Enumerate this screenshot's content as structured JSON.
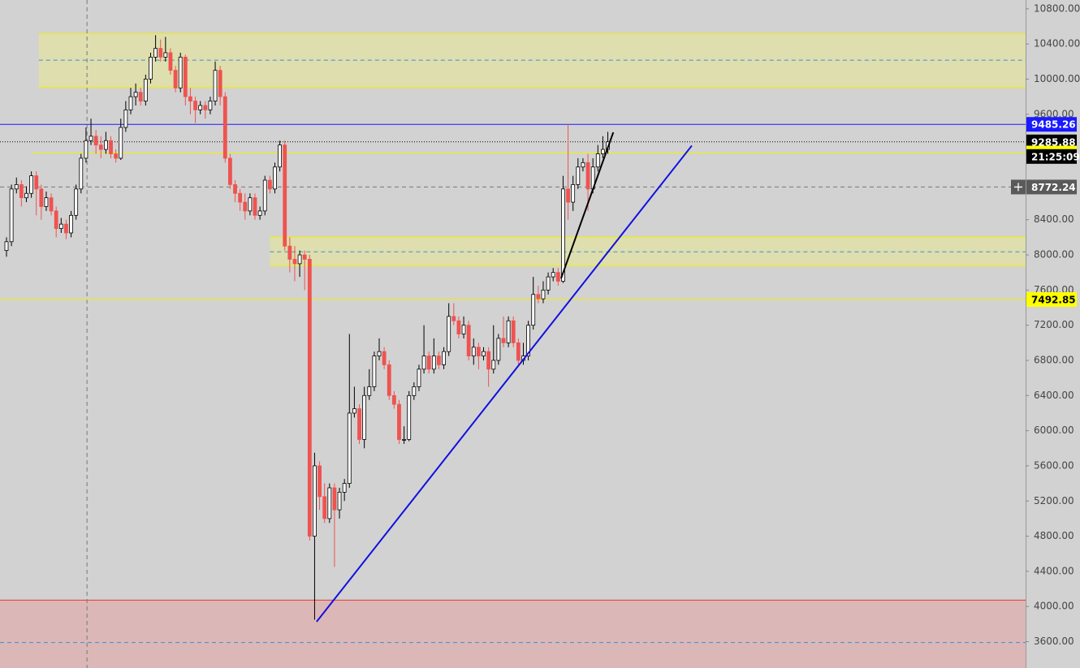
{
  "chart_data": {
    "type": "candlestick",
    "ylim": [
      3300,
      10900
    ],
    "yticks": [
      {
        "value": 10800,
        "label": "10800.00"
      },
      {
        "value": 10400,
        "label": "10400.00"
      },
      {
        "value": 10000,
        "label": "10000.00"
      },
      {
        "value": 9600,
        "label": "9600.00"
      },
      {
        "value": 8400,
        "label": "8400.00"
      },
      {
        "value": 8000,
        "label": "8000.00"
      },
      {
        "value": 7600,
        "label": "7600.00"
      },
      {
        "value": 7200,
        "label": "7200.00"
      },
      {
        "value": 6800,
        "label": "6800.00"
      },
      {
        "value": 6400,
        "label": "6400.00"
      },
      {
        "value": 6000,
        "label": "6000.00"
      },
      {
        "value": 5600,
        "label": "5600.00"
      },
      {
        "value": 5200,
        "label": "5200.00"
      },
      {
        "value": 4800,
        "label": "4800.00"
      },
      {
        "value": 4400,
        "label": "4400.00"
      },
      {
        "value": 4000,
        "label": "4000.00"
      },
      {
        "value": 3600,
        "label": "3600.00"
      }
    ],
    "up_color": "#ffffff",
    "down_color": "#ef5350",
    "ohlc": [
      [
        8050,
        8200,
        7980,
        8150
      ],
      [
        8150,
        8800,
        8100,
        8750
      ],
      [
        8750,
        8880,
        8700,
        8800
      ],
      [
        8800,
        8850,
        8550,
        8650
      ],
      [
        8650,
        8780,
        8600,
        8700
      ],
      [
        8700,
        8950,
        8650,
        8900
      ],
      [
        8900,
        8950,
        8450,
        8750
      ],
      [
        8750,
        8800,
        8400,
        8550
      ],
      [
        8550,
        8720,
        8500,
        8650
      ],
      [
        8650,
        8700,
        8450,
        8500
      ],
      [
        8500,
        8550,
        8200,
        8300
      ],
      [
        8300,
        8420,
        8250,
        8350
      ],
      [
        8350,
        8400,
        8180,
        8250
      ],
      [
        8250,
        8500,
        8200,
        8450
      ],
      [
        8450,
        8800,
        8400,
        8750
      ],
      [
        8750,
        9150,
        8700,
        9100
      ],
      [
        9100,
        9450,
        9050,
        9300
      ],
      [
        9300,
        9550,
        9250,
        9350
      ],
      [
        9350,
        9420,
        9150,
        9250
      ],
      [
        9250,
        9350,
        9100,
        9200
      ],
      [
        9200,
        9400,
        9150,
        9300
      ],
      [
        9300,
        9350,
        9100,
        9150
      ],
      [
        9150,
        9200,
        9050,
        9100
      ],
      [
        9100,
        9550,
        9080,
        9450
      ],
      [
        9450,
        9750,
        9400,
        9650
      ],
      [
        9650,
        9900,
        9600,
        9800
      ],
      [
        9800,
        9950,
        9700,
        9850
      ],
      [
        9850,
        9900,
        9700,
        9750
      ],
      [
        9750,
        10050,
        9700,
        10000
      ],
      [
        10000,
        10300,
        9950,
        10250
      ],
      [
        10250,
        10500,
        10200,
        10350
      ],
      [
        10350,
        10450,
        10200,
        10250
      ],
      [
        10250,
        10480,
        10200,
        10300
      ],
      [
        10300,
        10350,
        10050,
        10100
      ],
      [
        10100,
        10150,
        9850,
        9900
      ],
      [
        9900,
        10300,
        9850,
        10250
      ],
      [
        10250,
        10280,
        9700,
        9800
      ],
      [
        9800,
        9900,
        9600,
        9750
      ],
      [
        9750,
        9800,
        9500,
        9650
      ],
      [
        9650,
        9750,
        9600,
        9700
      ],
      [
        9700,
        9750,
        9550,
        9650
      ],
      [
        9650,
        9800,
        9600,
        9750
      ],
      [
        9750,
        10200,
        9700,
        10100
      ],
      [
        10100,
        10150,
        9700,
        9800
      ],
      [
        9800,
        9850,
        9050,
        9100
      ],
      [
        9100,
        9150,
        8750,
        8800
      ],
      [
        8800,
        8850,
        8600,
        8700
      ],
      [
        8700,
        8750,
        8500,
        8600
      ],
      [
        8600,
        8700,
        8400,
        8500
      ],
      [
        8500,
        8700,
        8450,
        8650
      ],
      [
        8650,
        8700,
        8400,
        8450
      ],
      [
        8450,
        8550,
        8400,
        8500
      ],
      [
        8500,
        8900,
        8450,
        8850
      ],
      [
        8850,
        8900,
        8700,
        8750
      ],
      [
        8750,
        9050,
        8700,
        9000
      ],
      [
        9000,
        9300,
        8950,
        9250
      ],
      [
        9250,
        9300,
        8050,
        8100
      ],
      [
        8100,
        8200,
        7800,
        7950
      ],
      [
        7950,
        8100,
        7700,
        7900
      ],
      [
        7900,
        8050,
        7750,
        8000
      ],
      [
        8000,
        8050,
        7600,
        7950
      ],
      [
        7950,
        8000,
        4750,
        4800
      ],
      [
        4800,
        5750,
        3850,
        5600
      ],
      [
        5600,
        5650,
        5100,
        5250
      ],
      [
        5250,
        5400,
        4950,
        5000
      ],
      [
        5000,
        5400,
        4950,
        5350
      ],
      [
        5350,
        5400,
        4450,
        5100
      ],
      [
        5100,
        5350,
        5000,
        5300
      ],
      [
        5300,
        5450,
        5200,
        5400
      ],
      [
        5400,
        7100,
        5350,
        6200
      ],
      [
        6200,
        6500,
        6150,
        6250
      ],
      [
        6250,
        6300,
        5850,
        5900
      ],
      [
        5900,
        6500,
        5800,
        6400
      ],
      [
        6400,
        6700,
        6350,
        6500
      ],
      [
        6500,
        6900,
        6450,
        6850
      ],
      [
        6850,
        7050,
        6800,
        6900
      ],
      [
        6900,
        6950,
        6700,
        6750
      ],
      [
        6750,
        6800,
        6350,
        6400
      ],
      [
        6400,
        6450,
        6250,
        6300
      ],
      [
        6300,
        6350,
        5850,
        5900
      ],
      [
        5900,
        6050,
        5850,
        5900
      ],
      [
        5900,
        6450,
        5880,
        6400
      ],
      [
        6400,
        6550,
        6350,
        6500
      ],
      [
        6500,
        6750,
        6450,
        6700
      ],
      [
        6700,
        7200,
        6650,
        6850
      ],
      [
        6850,
        6900,
        6650,
        6700
      ],
      [
        6700,
        7050,
        6650,
        6850
      ],
      [
        6850,
        6900,
        6700,
        6750
      ],
      [
        6750,
        6950,
        6700,
        6900
      ],
      [
        6900,
        7450,
        6850,
        7300
      ],
      [
        7300,
        7450,
        7200,
        7250
      ],
      [
        7250,
        7300,
        7050,
        7100
      ],
      [
        7100,
        7300,
        7050,
        7200
      ],
      [
        7200,
        7250,
        6800,
        6850
      ],
      [
        6850,
        7050,
        6750,
        6950
      ],
      [
        6950,
        7000,
        6700,
        6850
      ],
      [
        6850,
        6950,
        6800,
        6900
      ],
      [
        6900,
        6950,
        6500,
        6700
      ],
      [
        6700,
        7200,
        6650,
        6800
      ],
      [
        6800,
        7100,
        6750,
        7050
      ],
      [
        7050,
        7300,
        6950,
        7000
      ],
      [
        7000,
        7300,
        6950,
        7250
      ],
      [
        7250,
        7300,
        6950,
        7000
      ],
      [
        7000,
        7050,
        6750,
        6800
      ],
      [
        6800,
        7000,
        6750,
        6850
      ],
      [
        6850,
        7250,
        6800,
        7200
      ],
      [
        7200,
        7750,
        7150,
        7550
      ],
      [
        7550,
        7650,
        7450,
        7500
      ],
      [
        7500,
        7700,
        7450,
        7600
      ],
      [
        7600,
        7800,
        7550,
        7750
      ],
      [
        7750,
        7850,
        7700,
        7800
      ],
      [
        7800,
        7850,
        7650,
        7700
      ],
      [
        7700,
        8900,
        7680,
        8750
      ],
      [
        8750,
        9485.26,
        8400,
        8600
      ],
      [
        8600,
        8900,
        8500,
        8800
      ],
      [
        8800,
        9100,
        8750,
        9000
      ],
      [
        9000,
        9100,
        8950,
        9050
      ],
      [
        9050,
        9150,
        8500,
        8750
      ],
      [
        8750,
        9100,
        8700,
        9000
      ],
      [
        9000,
        9250,
        8950,
        9150
      ],
      [
        9150,
        9350,
        9100,
        9200
      ],
      [
        9200,
        9400,
        9150,
        9285.88
      ]
    ],
    "zones": [
      {
        "low": 9904,
        "high": 10517,
        "mid": 10215,
        "start": 6.5,
        "color": "#e8e890"
      },
      {
        "low": 7875,
        "high": 8205,
        "mid": 8035,
        "start": 53,
        "color": "#e8e890"
      },
      {
        "low": 3300,
        "high": 4072,
        "mid": 3590,
        "start": -2,
        "color": "#e4a0a0",
        "edge": "#e53935"
      }
    ],
    "trendlines": [
      {
        "x": [
          62.4,
          137.9
        ],
        "y": [
          3826,
          9243
        ],
        "color": "#1010e0"
      },
      {
        "x": [
          111.6,
          122.1
        ],
        "y": [
          7733,
          9394
        ],
        "color": "#000000"
      }
    ],
    "price_lines": [
      {
        "value": 9485.26,
        "color": "#1a1aff",
        "style": "solid",
        "text_color": "#ffffff"
      },
      {
        "value": 9285.88,
        "color": "#000000",
        "style": "dotted",
        "text_color": "#ffffff"
      },
      {
        "value": 9159.44,
        "color": "#f0f000",
        "style": "solid",
        "text_color": "#000000",
        "start": 5
      },
      {
        "value": 7492.85,
        "color": "#f0f000",
        "style": "solid",
        "text_color": "#000000"
      }
    ],
    "countdown": "21:25:09",
    "crosshair": {
      "x": 16.2,
      "y": 8772.24
    }
  }
}
